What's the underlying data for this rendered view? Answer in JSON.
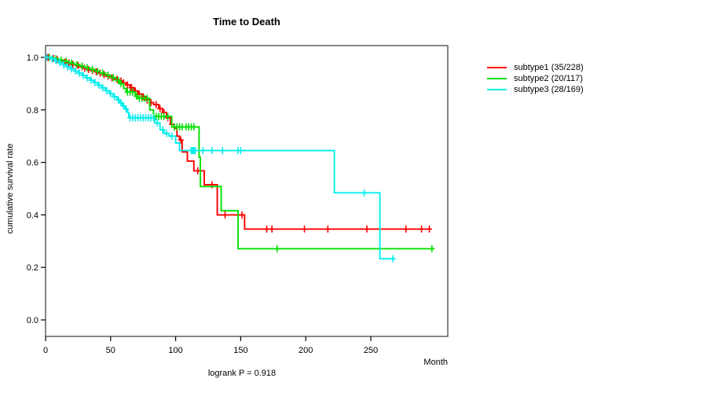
{
  "chart_data": {
    "type": "line",
    "variant": "kaplan-meier-step",
    "title": "Time to Death",
    "xlabel": "Month",
    "ylabel": "cumulative survival rate",
    "footnote": "logrank P = 0.918",
    "x_ticks": [
      0,
      50,
      100,
      150,
      200,
      250
    ],
    "y_ticks": [
      0.0,
      0.2,
      0.4,
      0.6,
      0.8,
      1.0
    ],
    "xlim": [
      0,
      309
    ],
    "ylim": [
      0.0,
      1.0
    ],
    "grid": false,
    "legend_position": "right-outside",
    "axis_color": "#444444",
    "series": [
      {
        "name": "subtype1",
        "label": "subtype1 (35/228)",
        "events": 35,
        "n": 228,
        "color": "#ff0000",
        "end_month": 296,
        "steps": [
          [
            0,
            1.0
          ],
          [
            5,
            0.996
          ],
          [
            8,
            0.991
          ],
          [
            11,
            0.987
          ],
          [
            14,
            0.982
          ],
          [
            17,
            0.978
          ],
          [
            20,
            0.973
          ],
          [
            23,
            0.969
          ],
          [
            26,
            0.964
          ],
          [
            29,
            0.959
          ],
          [
            32,
            0.954
          ],
          [
            35,
            0.95
          ],
          [
            38,
            0.945
          ],
          [
            41,
            0.94
          ],
          [
            44,
            0.934
          ],
          [
            47,
            0.928
          ],
          [
            50,
            0.922
          ],
          [
            53,
            0.916
          ],
          [
            56,
            0.91
          ],
          [
            59,
            0.903
          ],
          [
            62,
            0.895
          ],
          [
            65,
            0.885
          ],
          [
            68,
            0.872
          ],
          [
            71,
            0.86
          ],
          [
            74,
            0.85
          ],
          [
            77,
            0.838
          ],
          [
            80,
            0.828
          ],
          [
            83,
            0.82
          ],
          [
            87,
            0.805
          ],
          [
            90,
            0.79
          ],
          [
            93,
            0.77
          ],
          [
            96,
            0.745
          ],
          [
            99,
            0.73
          ],
          [
            101,
            0.7
          ],
          [
            103,
            0.685
          ],
          [
            105,
            0.64
          ],
          [
            109,
            0.605
          ],
          [
            114,
            0.568
          ],
          [
            122,
            0.515
          ],
          [
            132,
            0.4
          ],
          [
            153,
            0.346
          ]
        ],
        "censors": [
          [
            2,
            1.0
          ],
          [
            6,
            0.996
          ],
          [
            9,
            0.991
          ],
          [
            15,
            0.982
          ],
          [
            18,
            0.978
          ],
          [
            21,
            0.973
          ],
          [
            25,
            0.969
          ],
          [
            28,
            0.964
          ],
          [
            30,
            0.959
          ],
          [
            33,
            0.954
          ],
          [
            36,
            0.95
          ],
          [
            39,
            0.945
          ],
          [
            42,
            0.94
          ],
          [
            45,
            0.934
          ],
          [
            48,
            0.928
          ],
          [
            51,
            0.922
          ],
          [
            55,
            0.916
          ],
          [
            58,
            0.91
          ],
          [
            60,
            0.903
          ],
          [
            63,
            0.895
          ],
          [
            66,
            0.885
          ],
          [
            69,
            0.872
          ],
          [
            72,
            0.86
          ],
          [
            75,
            0.85
          ],
          [
            78,
            0.838
          ],
          [
            81,
            0.828
          ],
          [
            85,
            0.82
          ],
          [
            88,
            0.805
          ],
          [
            91,
            0.79
          ],
          [
            94,
            0.77
          ],
          [
            97,
            0.745
          ],
          [
            104,
            0.685
          ],
          [
            117,
            0.568
          ],
          [
            128,
            0.515
          ],
          [
            138,
            0.4
          ],
          [
            148,
            0.4
          ],
          [
            151,
            0.4
          ],
          [
            170,
            0.346
          ],
          [
            174,
            0.346
          ],
          [
            199,
            0.346
          ],
          [
            217,
            0.346
          ],
          [
            247,
            0.346
          ],
          [
            277,
            0.346
          ],
          [
            289,
            0.346
          ],
          [
            295,
            0.346
          ]
        ]
      },
      {
        "name": "subtype2",
        "label": "subtype2 (20/117)",
        "events": 20,
        "n": 117,
        "color": "#00e000",
        "end_month": 298,
        "steps": [
          [
            0,
            1.0
          ],
          [
            6,
            0.995
          ],
          [
            10,
            0.99
          ],
          [
            14,
            0.985
          ],
          [
            18,
            0.979
          ],
          [
            22,
            0.973
          ],
          [
            26,
            0.967
          ],
          [
            30,
            0.961
          ],
          [
            34,
            0.954
          ],
          [
            38,
            0.947
          ],
          [
            42,
            0.94
          ],
          [
            46,
            0.932
          ],
          [
            50,
            0.923
          ],
          [
            54,
            0.912
          ],
          [
            57,
            0.9
          ],
          [
            60,
            0.882
          ],
          [
            62,
            0.868
          ],
          [
            69,
            0.852
          ],
          [
            71,
            0.844
          ],
          [
            80,
            0.8
          ],
          [
            83,
            0.775
          ],
          [
            97,
            0.735
          ],
          [
            118,
            0.62
          ],
          [
            119,
            0.508
          ],
          [
            135,
            0.416
          ],
          [
            148,
            0.271
          ]
        ],
        "censors": [
          [
            3,
            1.0
          ],
          [
            8,
            0.995
          ],
          [
            12,
            0.99
          ],
          [
            16,
            0.985
          ],
          [
            20,
            0.979
          ],
          [
            24,
            0.973
          ],
          [
            28,
            0.967
          ],
          [
            32,
            0.961
          ],
          [
            36,
            0.954
          ],
          [
            40,
            0.947
          ],
          [
            44,
            0.94
          ],
          [
            48,
            0.932
          ],
          [
            52,
            0.923
          ],
          [
            56,
            0.912
          ],
          [
            58,
            0.9
          ],
          [
            63,
            0.868
          ],
          [
            65,
            0.868
          ],
          [
            67,
            0.868
          ],
          [
            70,
            0.852
          ],
          [
            72,
            0.844
          ],
          [
            74,
            0.844
          ],
          [
            76,
            0.844
          ],
          [
            78,
            0.844
          ],
          [
            85,
            0.775
          ],
          [
            87,
            0.775
          ],
          [
            89,
            0.775
          ],
          [
            91,
            0.775
          ],
          [
            94,
            0.775
          ],
          [
            99,
            0.735
          ],
          [
            101,
            0.735
          ],
          [
            103,
            0.735
          ],
          [
            105,
            0.735
          ],
          [
            108,
            0.735
          ],
          [
            110,
            0.735
          ],
          [
            112,
            0.735
          ],
          [
            114,
            0.735
          ],
          [
            178,
            0.271
          ],
          [
            297,
            0.271
          ]
        ]
      },
      {
        "name": "subtype3",
        "label": "subtype3 (28/169)",
        "events": 28,
        "n": 169,
        "color": "#00eeee",
        "end_month": 268,
        "steps": [
          [
            0,
            1.0
          ],
          [
            4,
            0.994
          ],
          [
            7,
            0.987
          ],
          [
            10,
            0.98
          ],
          [
            13,
            0.972
          ],
          [
            16,
            0.964
          ],
          [
            19,
            0.956
          ],
          [
            22,
            0.948
          ],
          [
            25,
            0.94
          ],
          [
            28,
            0.931
          ],
          [
            31,
            0.922
          ],
          [
            34,
            0.913
          ],
          [
            37,
            0.904
          ],
          [
            40,
            0.894
          ],
          [
            43,
            0.884
          ],
          [
            46,
            0.873
          ],
          [
            49,
            0.862
          ],
          [
            52,
            0.85
          ],
          [
            55,
            0.838
          ],
          [
            57,
            0.827
          ],
          [
            59,
            0.815
          ],
          [
            61,
            0.803
          ],
          [
            63,
            0.79
          ],
          [
            64,
            0.77
          ],
          [
            84,
            0.75
          ],
          [
            88,
            0.724
          ],
          [
            91,
            0.71
          ],
          [
            95,
            0.7
          ],
          [
            100,
            0.674
          ],
          [
            103,
            0.645
          ],
          [
            222,
            0.484
          ],
          [
            257,
            0.233
          ]
        ],
        "censors": [
          [
            1,
            1.0
          ],
          [
            5,
            0.994
          ],
          [
            8,
            0.987
          ],
          [
            11,
            0.98
          ],
          [
            14,
            0.972
          ],
          [
            17,
            0.964
          ],
          [
            20,
            0.956
          ],
          [
            23,
            0.948
          ],
          [
            26,
            0.94
          ],
          [
            29,
            0.931
          ],
          [
            32,
            0.922
          ],
          [
            35,
            0.913
          ],
          [
            38,
            0.904
          ],
          [
            41,
            0.894
          ],
          [
            44,
            0.884
          ],
          [
            47,
            0.873
          ],
          [
            50,
            0.862
          ],
          [
            53,
            0.85
          ],
          [
            56,
            0.838
          ],
          [
            58,
            0.827
          ],
          [
            60,
            0.815
          ],
          [
            62,
            0.803
          ],
          [
            65,
            0.77
          ],
          [
            67,
            0.77
          ],
          [
            69,
            0.77
          ],
          [
            71,
            0.77
          ],
          [
            73,
            0.77
          ],
          [
            75,
            0.77
          ],
          [
            77,
            0.77
          ],
          [
            79,
            0.77
          ],
          [
            81,
            0.77
          ],
          [
            83,
            0.77
          ],
          [
            86,
            0.75
          ],
          [
            90,
            0.724
          ],
          [
            93,
            0.71
          ],
          [
            97,
            0.7
          ],
          [
            112,
            0.645
          ],
          [
            113,
            0.645
          ],
          [
            114,
            0.645
          ],
          [
            115,
            0.645
          ],
          [
            121,
            0.645
          ],
          [
            128,
            0.645
          ],
          [
            136,
            0.645
          ],
          [
            148,
            0.645
          ],
          [
            150,
            0.645
          ],
          [
            245,
            0.484
          ],
          [
            267,
            0.233
          ]
        ]
      }
    ]
  }
}
